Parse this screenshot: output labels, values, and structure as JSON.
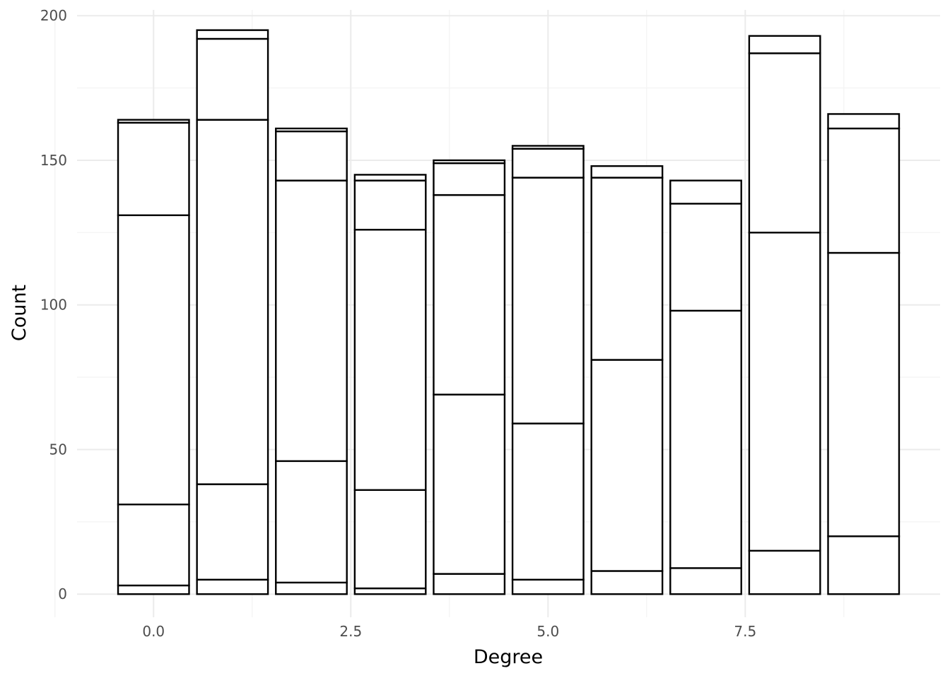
{
  "chart_data": {
    "type": "bar",
    "stacked": true,
    "xlabel": "Degree",
    "ylabel": "Count",
    "xlim": [
      -0.97,
      9.97
    ],
    "ylim": [
      -8,
      202
    ],
    "x_ticks": [
      0,
      2.5,
      5,
      7.5
    ],
    "x_tick_labels": [
      "0.0",
      "2.5",
      "5.0",
      "7.5"
    ],
    "y_ticks": [
      0,
      50,
      100,
      150,
      200
    ],
    "y_tick_labels": [
      "0",
      "50",
      "100",
      "150",
      "200"
    ],
    "grid": true,
    "legend": "none",
    "bar_width": 0.9,
    "categories": [
      0,
      1,
      2,
      3,
      4,
      5,
      6,
      7,
      8,
      9
    ],
    "stack_boundaries": [
      [
        3,
        31,
        131,
        163,
        164
      ],
      [
        5,
        38,
        164,
        192,
        195
      ],
      [
        4,
        46,
        143,
        160,
        161
      ],
      [
        2,
        36,
        126,
        143,
        145
      ],
      [
        7,
        69,
        138,
        149,
        150
      ],
      [
        5,
        59,
        144,
        154,
        155
      ],
      [
        8,
        81,
        144,
        148
      ],
      [
        9,
        98,
        135,
        143
      ],
      [
        15,
        125,
        187,
        193
      ],
      [
        20,
        118,
        161,
        166
      ]
    ],
    "totals": [
      164,
      195,
      161,
      145,
      150,
      155,
      148,
      143,
      193,
      166
    ]
  }
}
